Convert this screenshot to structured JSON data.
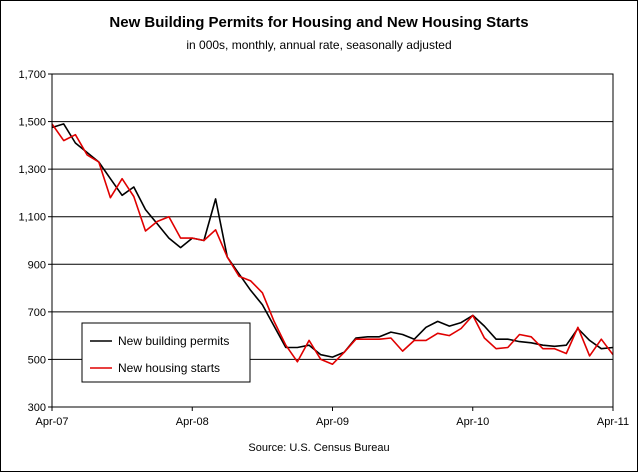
{
  "chart_data": {
    "type": "line",
    "title": "New Building Permits for Housing and New Housing Starts",
    "subtitle": "in 000s, monthly, annual rate, seasonally adjusted",
    "source": "Source: U.S. Census Bureau",
    "ylim": [
      300,
      1700
    ],
    "yticks": [
      "300",
      "500",
      "700",
      "900",
      "1,100",
      "1,300",
      "1,500",
      "1,700"
    ],
    "ytick_values": [
      300,
      500,
      700,
      900,
      1100,
      1300,
      1500,
      1700
    ],
    "x_start": "2007-04",
    "x_end": "2011-04",
    "xticks": [
      {
        "label": "Apr-07",
        "date": "2007-04"
      },
      {
        "label": "Apr-08",
        "date": "2008-04"
      },
      {
        "label": "Apr-09",
        "date": "2009-04"
      },
      {
        "label": "Apr-10",
        "date": "2010-04"
      },
      {
        "label": "Apr-11",
        "date": "2011-04"
      }
    ],
    "grid": true,
    "legend_position": "bottom-left",
    "x": [
      "2007-04",
      "2007-05",
      "2007-06",
      "2007-07",
      "2007-08",
      "2007-09",
      "2007-10",
      "2007-11",
      "2007-12",
      "2008-01",
      "2008-02",
      "2008-03",
      "2008-04",
      "2008-05",
      "2008-06",
      "2008-07",
      "2008-08",
      "2008-09",
      "2008-10",
      "2008-11",
      "2008-12",
      "2009-01",
      "2009-02",
      "2009-03",
      "2009-04",
      "2009-05",
      "2009-06",
      "2009-07",
      "2009-08",
      "2009-09",
      "2009-10",
      "2009-11",
      "2009-12",
      "2010-01",
      "2010-02",
      "2010-03",
      "2010-04",
      "2010-05",
      "2010-06",
      "2010-07",
      "2010-08",
      "2010-09",
      "2010-10",
      "2010-11",
      "2010-12",
      "2011-01",
      "2011-02",
      "2011-03",
      "2011-04"
    ],
    "series": [
      {
        "name": "New building permits",
        "color": "#000000",
        "values": [
          1475,
          1490,
          1410,
          1370,
          1330,
          1260,
          1190,
          1225,
          1130,
          1070,
          1010,
          970,
          1010,
          1000,
          1175,
          930,
          860,
          790,
          730,
          640,
          550,
          550,
          560,
          520,
          510,
          530,
          590,
          595,
          595,
          615,
          605,
          585,
          635,
          660,
          640,
          655,
          685,
          640,
          585,
          585,
          575,
          570,
          560,
          555,
          560,
          630,
          580,
          545,
          550
        ]
      },
      {
        "name": "New housing starts",
        "color": "#e00000",
        "values": [
          1490,
          1420,
          1445,
          1360,
          1330,
          1180,
          1260,
          1185,
          1040,
          1080,
          1100,
          1010,
          1010,
          1000,
          1045,
          930,
          850,
          830,
          780,
          660,
          560,
          490,
          580,
          500,
          480,
          530,
          585,
          585,
          585,
          590,
          535,
          580,
          580,
          610,
          600,
          630,
          685,
          590,
          545,
          550,
          605,
          595,
          545,
          545,
          525,
          635,
          515,
          585,
          520
        ]
      }
    ]
  }
}
